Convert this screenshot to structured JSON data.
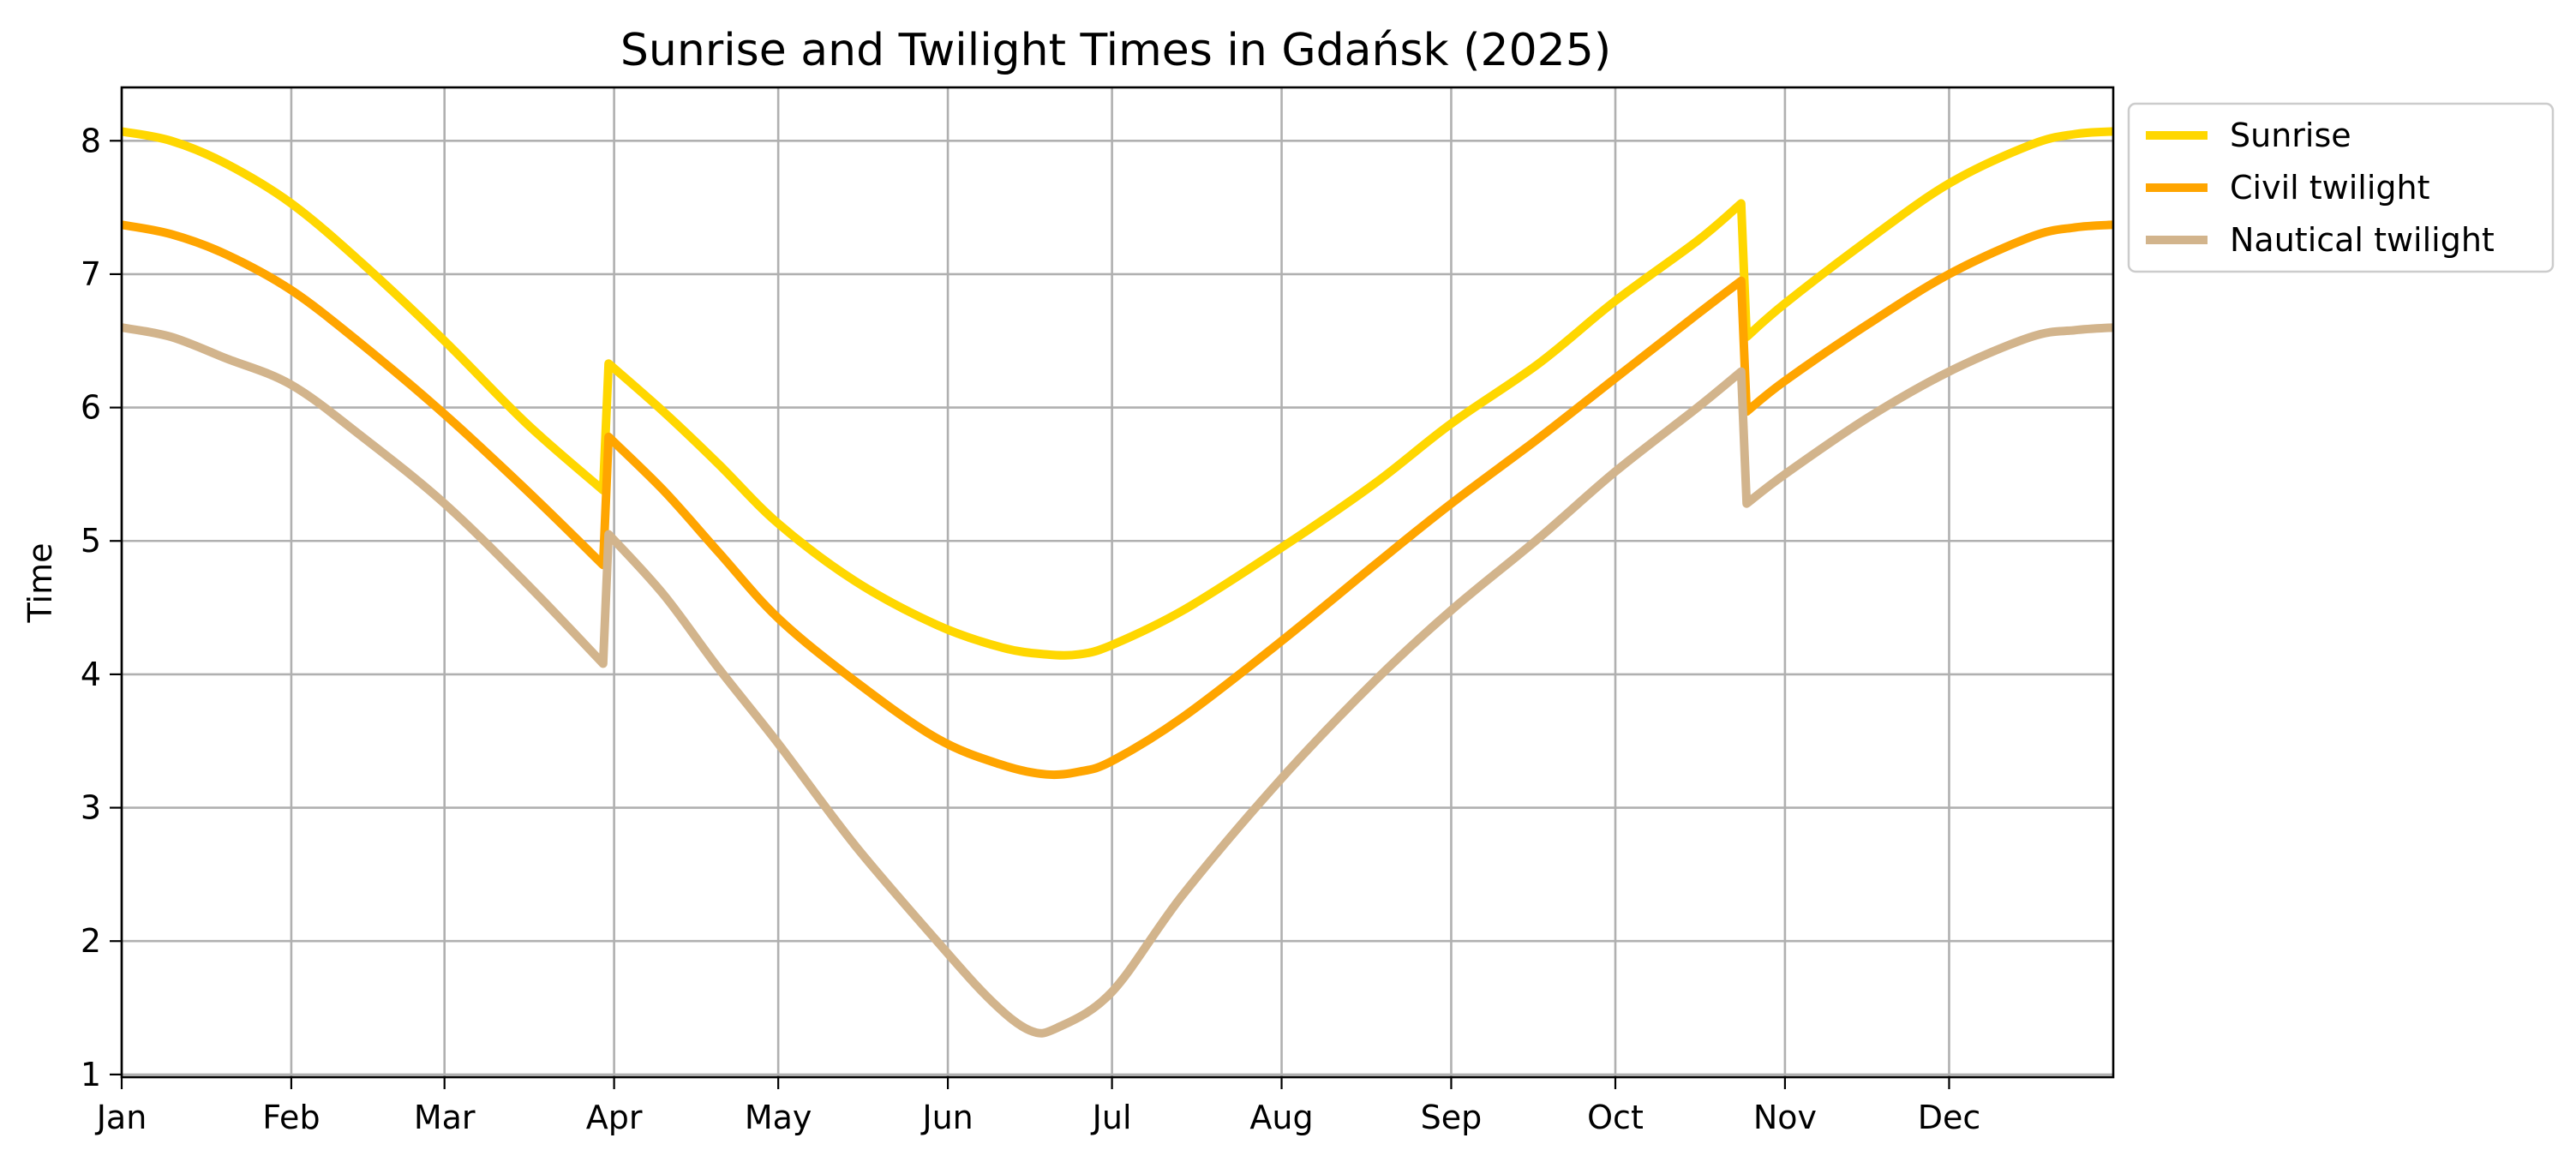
{
  "chart_data": {
    "type": "line",
    "title": "Sunrise and Twilight Times in Gdańsk (2025)",
    "xlabel": "",
    "ylabel": "Time",
    "x_axis": {
      "ticks": [
        {
          "label": "Jan",
          "day": 1
        },
        {
          "label": "Feb",
          "day": 32
        },
        {
          "label": "Mar",
          "day": 60
        },
        {
          "label": "Apr",
          "day": 91
        },
        {
          "label": "May",
          "day": 121
        },
        {
          "label": "Jun",
          "day": 152
        },
        {
          "label": "Jul",
          "day": 182
        },
        {
          "label": "Aug",
          "day": 213
        },
        {
          "label": "Sep",
          "day": 244
        },
        {
          "label": "Oct",
          "day": 274
        },
        {
          "label": "Nov",
          "day": 305
        },
        {
          "label": "Dec",
          "day": 335
        }
      ],
      "range": [
        1,
        365
      ]
    },
    "y_axis": {
      "ticks": [
        "1",
        "2",
        "3",
        "4",
        "5",
        "6",
        "7",
        "8"
      ],
      "range": [
        0.98,
        8.4
      ]
    },
    "grid": true,
    "legend_position": "outside-top-right",
    "series": [
      {
        "name": "Sunrise",
        "color": "#FFD700",
        "points": [
          [
            1,
            8.07
          ],
          [
            10,
            8.0
          ],
          [
            20,
            7.83
          ],
          [
            32,
            7.53
          ],
          [
            45,
            7.08
          ],
          [
            60,
            6.5
          ],
          [
            75,
            5.88
          ],
          [
            89,
            5.38
          ],
          [
            90,
            6.33
          ],
          [
            100,
            5.97
          ],
          [
            110,
            5.58
          ],
          [
            121,
            5.13
          ],
          [
            135,
            4.7
          ],
          [
            150,
            4.37
          ],
          [
            162,
            4.2
          ],
          [
            170,
            4.15
          ],
          [
            176,
            4.15
          ],
          [
            182,
            4.22
          ],
          [
            195,
            4.48
          ],
          [
            213,
            4.95
          ],
          [
            230,
            5.43
          ],
          [
            244,
            5.88
          ],
          [
            260,
            6.33
          ],
          [
            274,
            6.8
          ],
          [
            289,
            7.25
          ],
          [
            297,
            7.53
          ],
          [
            298,
            6.53
          ],
          [
            305,
            6.78
          ],
          [
            320,
            7.25
          ],
          [
            335,
            7.68
          ],
          [
            350,
            7.97
          ],
          [
            358,
            8.05
          ],
          [
            365,
            8.07
          ]
        ]
      },
      {
        "name": "Civil twilight",
        "color": "#FFA500",
        "points": [
          [
            1,
            7.37
          ],
          [
            10,
            7.3
          ],
          [
            20,
            7.15
          ],
          [
            32,
            6.88
          ],
          [
            45,
            6.47
          ],
          [
            60,
            5.95
          ],
          [
            75,
            5.38
          ],
          [
            89,
            4.82
          ],
          [
            90,
            5.78
          ],
          [
            100,
            5.38
          ],
          [
            110,
            4.92
          ],
          [
            121,
            4.42
          ],
          [
            135,
            3.95
          ],
          [
            150,
            3.52
          ],
          [
            162,
            3.32
          ],
          [
            170,
            3.25
          ],
          [
            176,
            3.27
          ],
          [
            182,
            3.35
          ],
          [
            195,
            3.68
          ],
          [
            213,
            4.25
          ],
          [
            230,
            4.82
          ],
          [
            244,
            5.28
          ],
          [
            260,
            5.77
          ],
          [
            274,
            6.22
          ],
          [
            289,
            6.7
          ],
          [
            297,
            6.95
          ],
          [
            298,
            5.97
          ],
          [
            305,
            6.2
          ],
          [
            320,
            6.62
          ],
          [
            335,
            7.0
          ],
          [
            350,
            7.28
          ],
          [
            358,
            7.35
          ],
          [
            365,
            7.37
          ]
        ]
      },
      {
        "name": "Nautical twilight",
        "color": "#D2B48C",
        "points": [
          [
            1,
            6.6
          ],
          [
            10,
            6.53
          ],
          [
            20,
            6.37
          ],
          [
            32,
            6.17
          ],
          [
            45,
            5.78
          ],
          [
            60,
            5.28
          ],
          [
            75,
            4.68
          ],
          [
            89,
            4.08
          ],
          [
            90,
            5.05
          ],
          [
            100,
            4.6
          ],
          [
            110,
            4.05
          ],
          [
            121,
            3.48
          ],
          [
            135,
            2.72
          ],
          [
            150,
            2.0
          ],
          [
            160,
            1.55
          ],
          [
            167,
            1.33
          ],
          [
            172,
            1.35
          ],
          [
            182,
            1.62
          ],
          [
            195,
            2.35
          ],
          [
            213,
            3.22
          ],
          [
            230,
            3.95
          ],
          [
            244,
            4.48
          ],
          [
            260,
            5.02
          ],
          [
            274,
            5.52
          ],
          [
            289,
            6.0
          ],
          [
            297,
            6.27
          ],
          [
            298,
            5.28
          ],
          [
            305,
            5.5
          ],
          [
            320,
            5.92
          ],
          [
            335,
            6.27
          ],
          [
            350,
            6.53
          ],
          [
            358,
            6.58
          ],
          [
            365,
            6.6
          ]
        ]
      }
    ]
  }
}
